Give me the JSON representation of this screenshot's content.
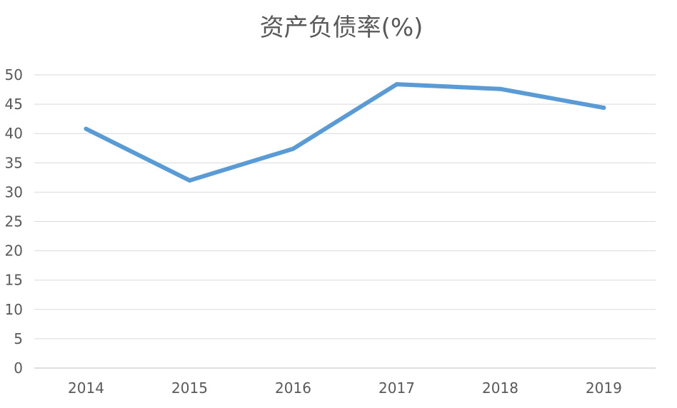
{
  "chart_data": {
    "type": "line",
    "title": "资产负债率(%)",
    "xlabel": "",
    "ylabel": "",
    "categories": [
      "2014",
      "2015",
      "2016",
      "2017",
      "2018",
      "2019"
    ],
    "series": [
      {
        "values": [
          40.8,
          32.0,
          37.4,
          48.4,
          47.6,
          44.4
        ]
      }
    ],
    "ylim": [
      0,
      50
    ],
    "yticks": [
      0,
      5,
      10,
      15,
      20,
      25,
      30,
      35,
      40,
      45,
      50
    ],
    "grid": true,
    "legend": "none",
    "line_color": "#5b9bd5"
  }
}
